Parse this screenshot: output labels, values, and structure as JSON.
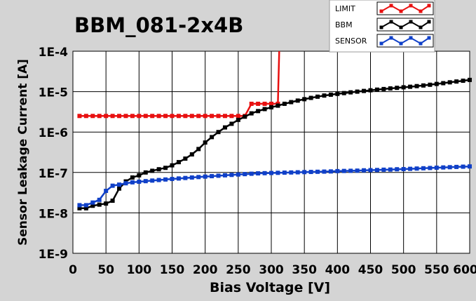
{
  "chart_data": {
    "type": "line",
    "title": "BBM_081-2x4B",
    "xlabel": "Bias Voltage [V]",
    "ylabel": "Sensor Leakage Current [A]",
    "x_scale": "linear",
    "y_scale": "log",
    "xlim": [
      0,
      600
    ],
    "ylim": [
      1e-09,
      0.0001
    ],
    "grid": true,
    "legend_position": "top-right",
    "x_ticks": [
      "0",
      "50",
      "100",
      "150",
      "200",
      "250",
      "300",
      "350",
      "400",
      "450",
      "500",
      "550",
      "600"
    ],
    "y_ticks": [
      "1E-9",
      "1E-8",
      "1E-7",
      "1E-6",
      "1E-5",
      "1E-4"
    ],
    "series": [
      {
        "name": "LIMIT",
        "color": "#e81010",
        "marker": "square",
        "points": [
          [
            10,
            2.5e-06
          ],
          [
            20,
            2.5e-06
          ],
          [
            30,
            2.5e-06
          ],
          [
            40,
            2.5e-06
          ],
          [
            50,
            2.5e-06
          ],
          [
            60,
            2.5e-06
          ],
          [
            70,
            2.5e-06
          ],
          [
            80,
            2.5e-06
          ],
          [
            90,
            2.5e-06
          ],
          [
            100,
            2.5e-06
          ],
          [
            110,
            2.5e-06
          ],
          [
            120,
            2.5e-06
          ],
          [
            130,
            2.5e-06
          ],
          [
            140,
            2.5e-06
          ],
          [
            150,
            2.5e-06
          ],
          [
            160,
            2.5e-06
          ],
          [
            170,
            2.5e-06
          ],
          [
            180,
            2.5e-06
          ],
          [
            190,
            2.5e-06
          ],
          [
            200,
            2.5e-06
          ],
          [
            210,
            2.5e-06
          ],
          [
            220,
            2.5e-06
          ],
          [
            230,
            2.5e-06
          ],
          [
            240,
            2.5e-06
          ],
          [
            250,
            2.5e-06
          ],
          [
            260,
            2.5e-06
          ],
          [
            270,
            5e-06
          ],
          [
            280,
            5e-06
          ],
          [
            290,
            5e-06
          ],
          [
            300,
            5e-06
          ],
          [
            310,
            5e-06
          ],
          [
            312,
            0.0001
          ]
        ]
      },
      {
        "name": "BBM",
        "color": "#000000",
        "marker": "square",
        "points": [
          [
            10,
            1.3e-08
          ],
          [
            20,
            1.3e-08
          ],
          [
            30,
            1.5e-08
          ],
          [
            40,
            1.6e-08
          ],
          [
            50,
            1.7e-08
          ],
          [
            60,
            2e-08
          ],
          [
            70,
            4e-08
          ],
          [
            80,
            6e-08
          ],
          [
            90,
            7.5e-08
          ],
          [
            100,
            8.5e-08
          ],
          [
            110,
            1e-07
          ],
          [
            120,
            1.1e-07
          ],
          [
            130,
            1.2e-07
          ],
          [
            140,
            1.3e-07
          ],
          [
            150,
            1.5e-07
          ],
          [
            160,
            1.8e-07
          ],
          [
            170,
            2.2e-07
          ],
          [
            180,
            2.8e-07
          ],
          [
            190,
            3.8e-07
          ],
          [
            200,
            5.5e-07
          ],
          [
            210,
            7.5e-07
          ],
          [
            220,
            1e-06
          ],
          [
            230,
            1.3e-06
          ],
          [
            240,
            1.6e-06
          ],
          [
            250,
            2e-06
          ],
          [
            260,
            2.4e-06
          ],
          [
            270,
            2.9e-06
          ],
          [
            280,
            3.3e-06
          ],
          [
            290,
            3.7e-06
          ],
          [
            300,
            4.1e-06
          ],
          [
            310,
            4.5e-06
          ],
          [
            320,
            5e-06
          ],
          [
            330,
            5.5e-06
          ],
          [
            340,
            6e-06
          ],
          [
            350,
            6.5e-06
          ],
          [
            360,
            7e-06
          ],
          [
            370,
            7.5e-06
          ],
          [
            380,
            8e-06
          ],
          [
            390,
            8.4e-06
          ],
          [
            400,
            8.8e-06
          ],
          [
            410,
            9.2e-06
          ],
          [
            420,
            9.6e-06
          ],
          [
            430,
            1e-05
          ],
          [
            440,
            1.04e-05
          ],
          [
            450,
            1.08e-05
          ],
          [
            460,
            1.12e-05
          ],
          [
            470,
            1.16e-05
          ],
          [
            480,
            1.2e-05
          ],
          [
            490,
            1.24e-05
          ],
          [
            500,
            1.28e-05
          ],
          [
            510,
            1.32e-05
          ],
          [
            520,
            1.37e-05
          ],
          [
            530,
            1.42e-05
          ],
          [
            540,
            1.48e-05
          ],
          [
            550,
            1.55e-05
          ],
          [
            560,
            1.62e-05
          ],
          [
            570,
            1.7e-05
          ],
          [
            580,
            1.78e-05
          ],
          [
            590,
            1.86e-05
          ],
          [
            600,
            1.95e-05
          ]
        ]
      },
      {
        "name": "SENSOR",
        "color": "#1040c8",
        "marker": "square",
        "points": [
          [
            10,
            1.55e-08
          ],
          [
            20,
            1.55e-08
          ],
          [
            30,
            1.8e-08
          ],
          [
            40,
            2.1e-08
          ],
          [
            50,
            3.5e-08
          ],
          [
            60,
            4.7e-08
          ],
          [
            70,
            5e-08
          ],
          [
            80,
            5.4e-08
          ],
          [
            90,
            5.7e-08
          ],
          [
            100,
            5.9e-08
          ],
          [
            110,
            6.1e-08
          ],
          [
            120,
            6.3e-08
          ],
          [
            130,
            6.5e-08
          ],
          [
            140,
            6.7e-08
          ],
          [
            150,
            6.9e-08
          ],
          [
            160,
            7.1e-08
          ],
          [
            170,
            7.3e-08
          ],
          [
            180,
            7.5e-08
          ],
          [
            190,
            7.7e-08
          ],
          [
            200,
            7.9e-08
          ],
          [
            210,
            8.1e-08
          ],
          [
            220,
            8.3e-08
          ],
          [
            230,
            8.5e-08
          ],
          [
            240,
            8.7e-08
          ],
          [
            250,
            8.9e-08
          ],
          [
            260,
            9.1e-08
          ],
          [
            270,
            9.3e-08
          ],
          [
            280,
            9.5e-08
          ],
          [
            290,
            9.6e-08
          ],
          [
            300,
            9.7e-08
          ],
          [
            310,
            9.8e-08
          ],
          [
            320,
            9.9e-08
          ],
          [
            330,
            1e-07
          ],
          [
            340,
            1.01e-07
          ],
          [
            350,
            1.02e-07
          ],
          [
            360,
            1.03e-07
          ],
          [
            370,
            1.04e-07
          ],
          [
            380,
            1.05e-07
          ],
          [
            390,
            1.06e-07
          ],
          [
            400,
            1.08e-07
          ],
          [
            410,
            1.09e-07
          ],
          [
            420,
            1.1e-07
          ],
          [
            430,
            1.11e-07
          ],
          [
            440,
            1.13e-07
          ],
          [
            450,
            1.14e-07
          ],
          [
            460,
            1.15e-07
          ],
          [
            470,
            1.17e-07
          ],
          [
            480,
            1.18e-07
          ],
          [
            490,
            1.2e-07
          ],
          [
            500,
            1.21e-07
          ],
          [
            510,
            1.23e-07
          ],
          [
            520,
            1.25e-07
          ],
          [
            530,
            1.27e-07
          ],
          [
            540,
            1.29e-07
          ],
          [
            550,
            1.31e-07
          ],
          [
            560,
            1.33e-07
          ],
          [
            570,
            1.35e-07
          ],
          [
            580,
            1.37e-07
          ],
          [
            590,
            1.39e-07
          ],
          [
            600,
            1.41e-07
          ]
        ]
      }
    ]
  }
}
